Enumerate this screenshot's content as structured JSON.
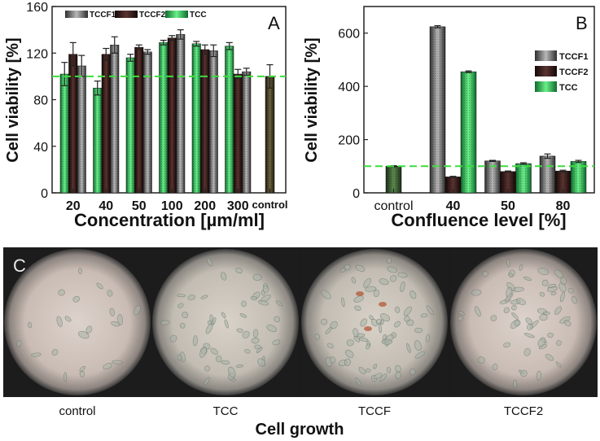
{
  "colors": {
    "tccf1": "#8c8c8c",
    "tccf2": "#3a1f1c",
    "tcc": "#32c25c",
    "control_a": "#4a4228",
    "control_b": "#3a5a32",
    "threshold_line": "#3ddc3d",
    "photo_bg": "#1a1a1a"
  },
  "chart_data": [
    {
      "type": "bar",
      "panel_label": "A",
      "title": "",
      "xlabel": "Concentration [µm/ml]",
      "ylabel": "Cell viability [%]",
      "ylim": [
        0,
        160
      ],
      "yticks": [
        0,
        40,
        80,
        120,
        160
      ],
      "grid": false,
      "legend_position": "top",
      "categories": [
        "20",
        "40",
        "50",
        "100",
        "200",
        "300"
      ],
      "series": [
        {
          "name": "TCC",
          "values": [
            102,
            90,
            116,
            129,
            128,
            126
          ],
          "errors": [
            10,
            6,
            3,
            2,
            2,
            3
          ]
        },
        {
          "name": "TCCF2",
          "values": [
            119,
            119,
            125,
            133,
            123,
            102
          ],
          "errors": [
            10,
            5,
            2,
            2,
            4,
            4
          ]
        },
        {
          "name": "TCCF1",
          "values": [
            109,
            127,
            121,
            136,
            122,
            104
          ],
          "errors": [
            9,
            7,
            2,
            4,
            5,
            3
          ]
        }
      ],
      "control": {
        "label": "control",
        "value": 100,
        "error": 10
      },
      "reference_line": 100
    },
    {
      "type": "bar",
      "panel_label": "B",
      "title": "",
      "xlabel": "Confluence level [%]",
      "ylabel": "Cell viability [%]",
      "ylim": [
        0,
        700
      ],
      "yticks": [
        0,
        200,
        400,
        600
      ],
      "grid": false,
      "legend_position": "right",
      "categories": [
        "40",
        "50",
        "80"
      ],
      "series": [
        {
          "name": "TCCF1",
          "values": [
            624,
            120,
            138
          ],
          "errors": [
            4,
            2,
            8
          ]
        },
        {
          "name": "TCCF2",
          "values": [
            60,
            80,
            82
          ],
          "errors": [
            2,
            2,
            3
          ]
        },
        {
          "name": "TCC",
          "values": [
            455,
            110,
            118
          ],
          "errors": [
            3,
            3,
            4
          ]
        }
      ],
      "control": {
        "label": "control",
        "value": 100,
        "error": 2
      },
      "reference_line": 100
    }
  ],
  "photos": {
    "panel_label": "C",
    "captions": [
      "control",
      "TCC",
      "TCCF",
      "TCCF2"
    ],
    "title": "Cell growth"
  }
}
